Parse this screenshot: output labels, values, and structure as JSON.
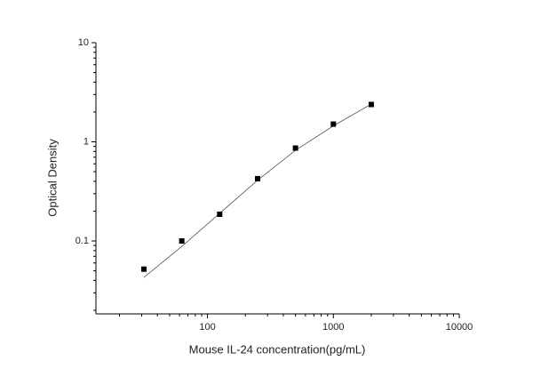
{
  "chart_data": {
    "type": "scatter",
    "x_label": "Mouse IL-24 concentration(pg/mL)",
    "y_label": "Optical Density",
    "x_log": true,
    "y_log": true,
    "xlim": [
      13,
      10000
    ],
    "ylim": [
      0.0184,
      10
    ],
    "xticks": [
      100,
      1000,
      10000
    ],
    "yticks": [
      0.1,
      1,
      10
    ],
    "x_minor_ticks": [
      20,
      30,
      40,
      50,
      60,
      70,
      80,
      90,
      200,
      300,
      400,
      500,
      600,
      700,
      800,
      900,
      2000,
      3000,
      4000,
      5000,
      6000,
      7000,
      8000,
      9000
    ],
    "y_minor_ticks": [
      0.02,
      0.03,
      0.04,
      0.05,
      0.06,
      0.07,
      0.08,
      0.09,
      0.2,
      0.3,
      0.4,
      0.5,
      0.6,
      0.7,
      0.8,
      0.9,
      2,
      3,
      4,
      5,
      6,
      7,
      8,
      9
    ],
    "points": {
      "color": "#000000",
      "x": [
        31.25,
        62.5,
        125,
        250,
        500,
        1000,
        2000
      ],
      "y": [
        0.052,
        0.1,
        0.186,
        0.425,
        0.865,
        1.51,
        2.38
      ]
    },
    "fit": {
      "color": "#555555",
      "x": [
        31.25,
        62.5,
        125,
        250,
        500,
        1000,
        2000
      ],
      "y": [
        0.043,
        0.088,
        0.19,
        0.41,
        0.82,
        1.45,
        2.4
      ]
    }
  }
}
